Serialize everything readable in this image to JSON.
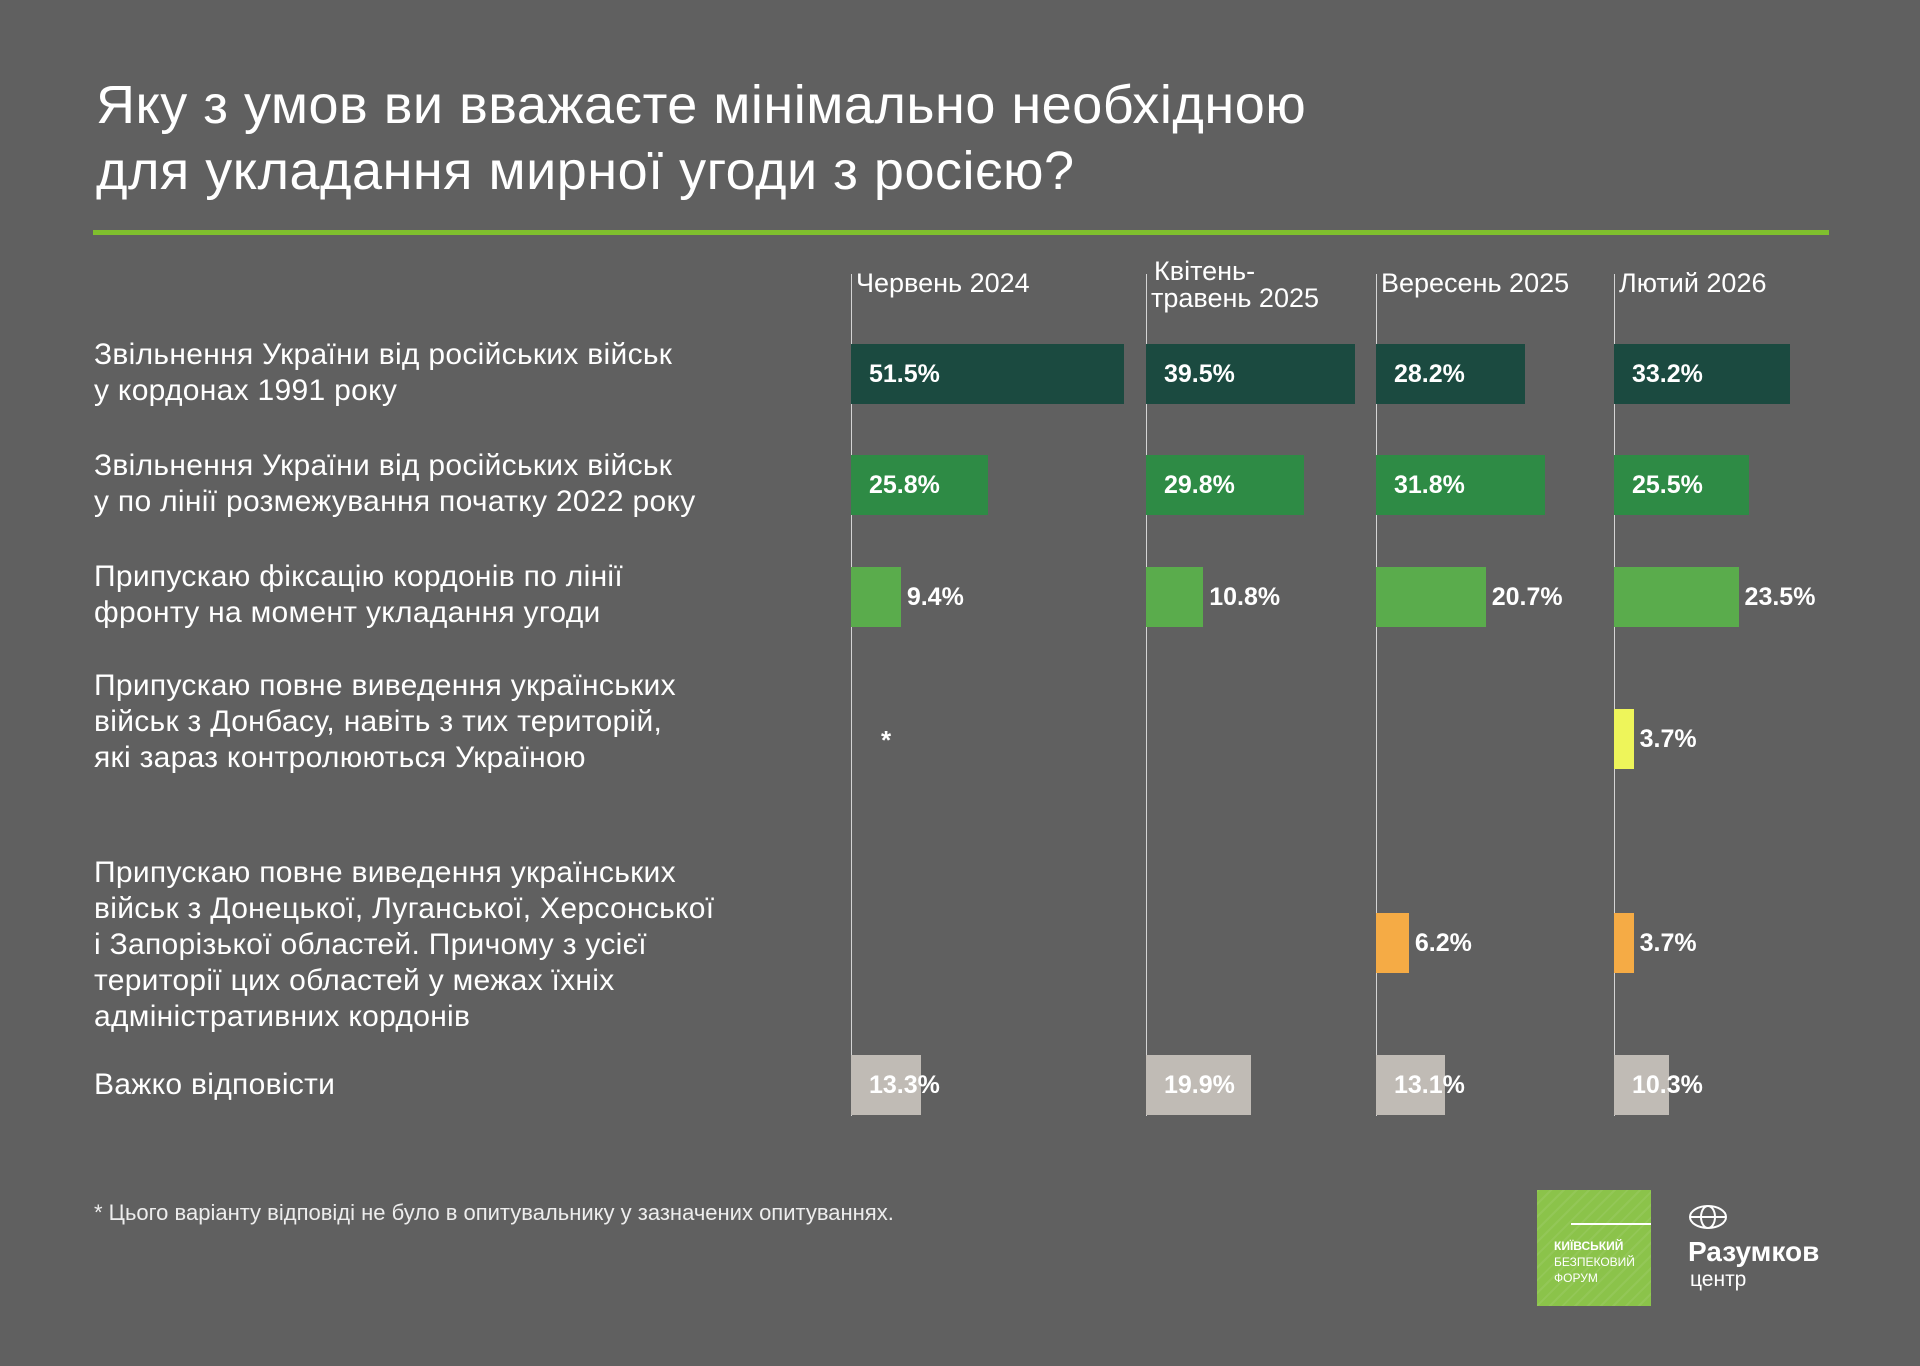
{
  "title": {
    "line1": "Яку з умов ви вважаєте мінімально необхідною",
    "line2": "для укладання мирної угоди з росією?"
  },
  "chart_data": {
    "type": "bar",
    "orientation": "horizontal",
    "unit": "%",
    "title": "Яку з умов ви вважаєте мінімально необхідною для укладання мирної угоди з росією?",
    "columns": [
      {
        "label_lines": [
          "Червень 2024"
        ]
      },
      {
        "label_lines": [
          "Квітень-",
          "травень 2025"
        ]
      },
      {
        "label_lines": [
          "Вересень 2025"
        ]
      },
      {
        "label_lines": [
          "Лютий 2026"
        ]
      }
    ],
    "rows": [
      {
        "label_lines": [
          "Звільнення України від російських військ",
          "у кордонах 1991 року"
        ],
        "color": "#1b4a40",
        "values": [
          51.5,
          39.5,
          28.2,
          33.2
        ],
        "labels": [
          "51.5%",
          "39.5%",
          "28.2%",
          "33.2%"
        ]
      },
      {
        "label_lines": [
          "Звільнення України від російських військ",
          "у по лінії розмежування початку 2022 року"
        ],
        "color": "#2e8b45",
        "values": [
          25.8,
          29.8,
          31.8,
          25.5
        ],
        "labels": [
          "25.8%",
          "29.8%",
          "31.8%",
          "25.5%"
        ]
      },
      {
        "label_lines": [
          "Припускаю фіксацію кордонів по лінії",
          "фронту на момент укладання угоди"
        ],
        "color": "#5aac4c",
        "values": [
          9.4,
          10.8,
          20.7,
          23.5
        ],
        "labels": [
          "9.4%",
          "10.8%",
          "20.7%",
          "23.5%"
        ]
      },
      {
        "label_lines": [
          "Припускаю повне виведення українських",
          "військ з Донбасу, навіть з тих територій,",
          "які зараз контролюються Україною"
        ],
        "color": "#eef55a",
        "values": [
          null,
          null,
          null,
          3.7
        ],
        "labels": [
          "*",
          null,
          null,
          "3.7%"
        ]
      },
      {
        "label_lines": [
          "Припускаю повне виведення українських",
          "військ з Донецької, Луганської, Херсонської",
          "і Запорізької областей. Причому з усієї",
          "території цих областей у межах їхніх",
          "адміністративних кордонів"
        ],
        "color": "#f5ab45",
        "values": [
          null,
          null,
          6.2,
          3.7
        ],
        "labels": [
          null,
          null,
          "6.2%",
          "3.7%"
        ]
      },
      {
        "label_lines": [
          "Важко відповісти"
        ],
        "color": "#c0bbb5",
        "values": [
          13.3,
          19.9,
          13.1,
          10.3
        ],
        "labels": [
          "13.3%",
          "19.9%",
          "13.1%",
          "10.3%"
        ]
      }
    ],
    "footnote": "* Цього варіанту відповіді не було в опитувальнику у зазначених опитуваннях."
  },
  "logos": {
    "kbf_lines": [
      "Київський",
      "безпековий",
      "форум"
    ],
    "razumkov_name": "Разумков",
    "razumkov_sub": "центр"
  }
}
